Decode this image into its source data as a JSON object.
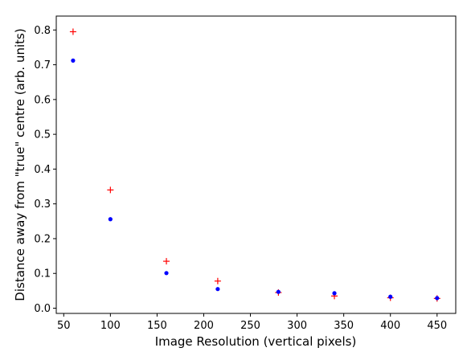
{
  "chart_data": {
    "type": "scatter",
    "title": "",
    "xlabel": "Image Resolution (vertical pixels)",
    "ylabel": "Distance away from \"true\" centre (arb. units)",
    "xlim": [
      42,
      470
    ],
    "ylim": [
      -0.015,
      0.84
    ],
    "xticks": [
      50,
      100,
      150,
      200,
      250,
      300,
      350,
      400,
      450
    ],
    "xtick_labels": [
      "50",
      "100",
      "150",
      "200",
      "250",
      "300",
      "350",
      "400",
      "450"
    ],
    "yticks": [
      0.0,
      0.1,
      0.2,
      0.3,
      0.4,
      0.5,
      0.6,
      0.7,
      0.8
    ],
    "ytick_labels": [
      "0.0",
      "0.1",
      "0.2",
      "0.3",
      "0.4",
      "0.5",
      "0.6",
      "0.7",
      "0.8"
    ],
    "grid": false,
    "legend": "none",
    "series": [
      {
        "marker": "plus",
        "color": "#ff0000",
        "points": [
          [
            60,
            0.795
          ],
          [
            100,
            0.34
          ],
          [
            160,
            0.135
          ],
          [
            215,
            0.078
          ],
          [
            280,
            0.045
          ],
          [
            340,
            0.035
          ],
          [
            400,
            0.03
          ],
          [
            450,
            0.028
          ]
        ]
      },
      {
        "marker": "dot",
        "color": "#0000ff",
        "points": [
          [
            60,
            0.712
          ],
          [
            100,
            0.256
          ],
          [
            160,
            0.101
          ],
          [
            215,
            0.055
          ],
          [
            280,
            0.047
          ],
          [
            340,
            0.043
          ],
          [
            400,
            0.033
          ],
          [
            450,
            0.029
          ]
        ]
      }
    ]
  }
}
